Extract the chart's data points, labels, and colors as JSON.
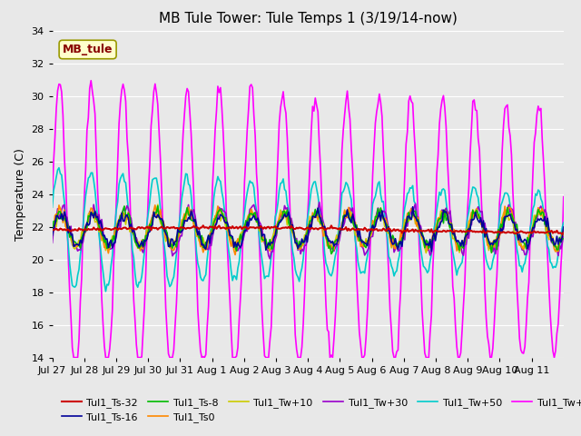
{
  "title": "MB Tule Tower: Tule Temps 1 (3/19/14-now)",
  "ylabel": "Temperature (C)",
  "ylim": [
    14,
    34
  ],
  "yticks": [
    14,
    16,
    18,
    20,
    22,
    24,
    26,
    28,
    30,
    32,
    34
  ],
  "bg_color": "#e8e8e8",
  "plot_bg": "#e8e8e8",
  "series": {
    "Tul1_Ts-32": {
      "color": "#cc0000",
      "lw": 1.5,
      "zorder": 5
    },
    "Tul1_Ts-16": {
      "color": "#000099",
      "lw": 1.2,
      "zorder": 4
    },
    "Tul1_Ts-8": {
      "color": "#00bb00",
      "lw": 1.2,
      "zorder": 4
    },
    "Tul1_Ts0": {
      "color": "#ff8800",
      "lw": 1.2,
      "zorder": 4
    },
    "Tul1_Tw+10": {
      "color": "#cccc00",
      "lw": 1.2,
      "zorder": 4
    },
    "Tul1_Tw+30": {
      "color": "#9900cc",
      "lw": 1.2,
      "zorder": 4
    },
    "Tul1_Tw+50": {
      "color": "#00cccc",
      "lw": 1.2,
      "zorder": 4
    },
    "Tul1_Tw+100": {
      "color": "#ff00ff",
      "lw": 1.2,
      "zorder": 4
    }
  },
  "xtick_positions": [
    0,
    1,
    2,
    3,
    4,
    5,
    6,
    7,
    8,
    9,
    10,
    11,
    12,
    13,
    14,
    15
  ],
  "xtick_labels": [
    "Jul 27",
    "Jul 28",
    "Jul 29",
    "Jul 30",
    "Jul 31",
    "Aug 1",
    "Aug 2",
    "Aug 3",
    "Aug 4",
    "Aug 5",
    "Aug 6",
    "Aug 7",
    "Aug 8",
    "Aug 9",
    "Aug 10",
    "Aug 11"
  ],
  "n_days": 16,
  "label_box_color": "#ffffcc",
  "label_box_edge": "#999900",
  "label_text": "MB_tule",
  "label_text_color": "#880000"
}
